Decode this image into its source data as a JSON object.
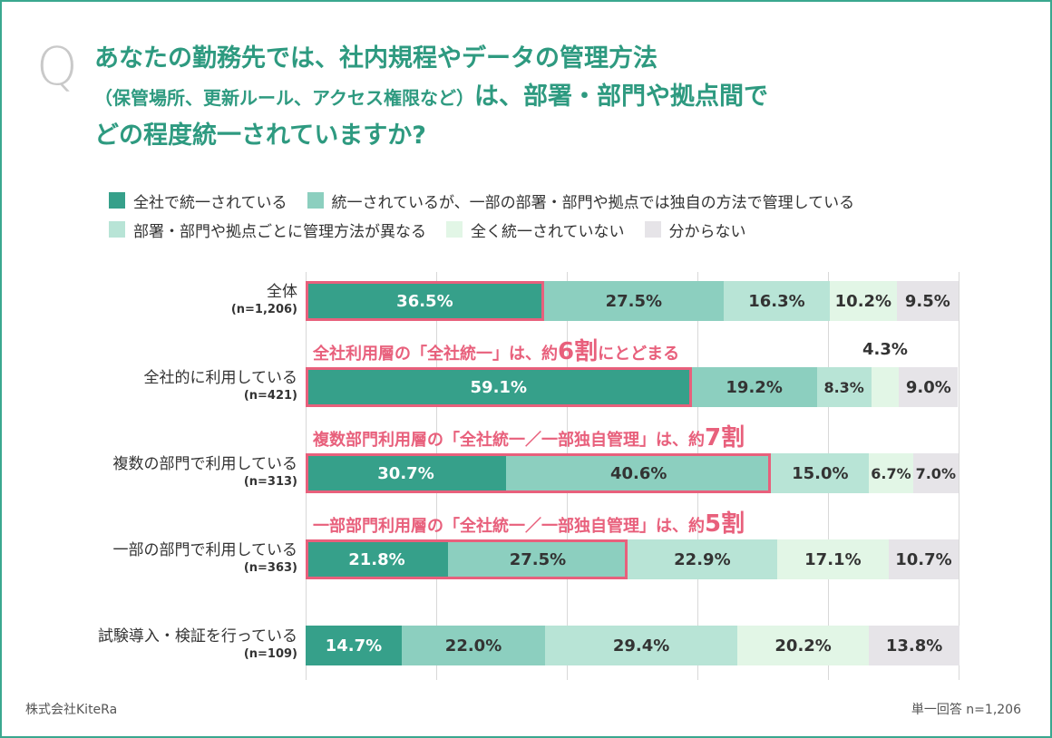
{
  "question": {
    "mark": "Q",
    "line1": "あなたの勤務先では、社内規程やデータの管理方法",
    "line2_sub": "（保管場所、更新ルール、アクセス権限など）",
    "line2_main": "は、部署・部門や拠点間で",
    "line3": "どの程度統一されていますか?"
  },
  "legend": [
    {
      "label": "全社で統一されている",
      "color": "#36a08a"
    },
    {
      "label": "統一されているが、一部の部署・部門や拠点では独自の方法で管理している",
      "color": "#8ccfbf"
    },
    {
      "label": "部署・部門や拠点ごとに管理方法が異なる",
      "color": "#b8e4d6"
    },
    {
      "label": "全く統一されていない",
      "color": "#e2f6e6"
    },
    {
      "label": "分からない",
      "color": "#e6e4e8"
    }
  ],
  "chart_data": {
    "type": "bar",
    "orientation": "horizontal-stacked-100",
    "series_names": [
      "全社で統一されている",
      "統一されているが、一部の部署・部門や拠点では独自の方法で管理している",
      "部署・部門や拠点ごとに管理方法が異なる",
      "全く統一されていない",
      "分からない"
    ],
    "categories": [
      {
        "name": "全体",
        "n": "(n=1,206)"
      },
      {
        "name": "全社的に利用している",
        "n": "(n=421)"
      },
      {
        "name": "複数の部門で利用している",
        "n": "(n=313)"
      },
      {
        "name": "一部の部門で利用している",
        "n": "(n=363)"
      },
      {
        "name": "試験導入・検証を行っている",
        "n": "(n=109)"
      }
    ],
    "values": [
      [
        36.5,
        27.5,
        16.3,
        10.2,
        9.5
      ],
      [
        59.1,
        19.2,
        8.3,
        4.3,
        9.0
      ],
      [
        30.7,
        40.6,
        15.0,
        6.7,
        7.0
      ],
      [
        21.8,
        27.5,
        22.9,
        17.1,
        10.7
      ],
      [
        14.7,
        22.0,
        29.4,
        20.2,
        13.8
      ]
    ],
    "value_labels": [
      [
        "36.5%",
        "27.5%",
        "16.3%",
        "10.2%",
        "9.5%"
      ],
      [
        "59.1%",
        "19.2%",
        "8.3%",
        "4.3%",
        "9.0%"
      ],
      [
        "30.7%",
        "40.6%",
        "15.0%",
        "6.7%",
        "7.0%"
      ],
      [
        "21.8%",
        "27.5%",
        "22.9%",
        "17.1%",
        "10.7%"
      ],
      [
        "14.7%",
        "22.0%",
        "29.4%",
        "20.2%",
        "13.8%"
      ]
    ],
    "xlim": [
      0,
      100
    ],
    "grid": true,
    "highlights": [
      {
        "row": 0,
        "segments": 1
      },
      {
        "row": 1,
        "segments": 1
      },
      {
        "row": 2,
        "segments": 2
      },
      {
        "row": 3,
        "segments": 2
      }
    ],
    "annotations": [
      {
        "row": 1,
        "text_prefix": "全社利用層の「全社統一」は、約",
        "big": "6割",
        "suffix": "にとどまる"
      },
      {
        "row": 2,
        "text_prefix": "複数部門利用層の「全社統一／一部独自管理」は、約",
        "big": "7割",
        "suffix": ""
      },
      {
        "row": 3,
        "text_prefix": "一部部門利用層の「全社統一／一部独自管理」は、約",
        "big": "5割",
        "suffix": ""
      }
    ]
  },
  "footer": {
    "company": "株式会社KiteRa",
    "note": "単一回答 n=1,206"
  }
}
